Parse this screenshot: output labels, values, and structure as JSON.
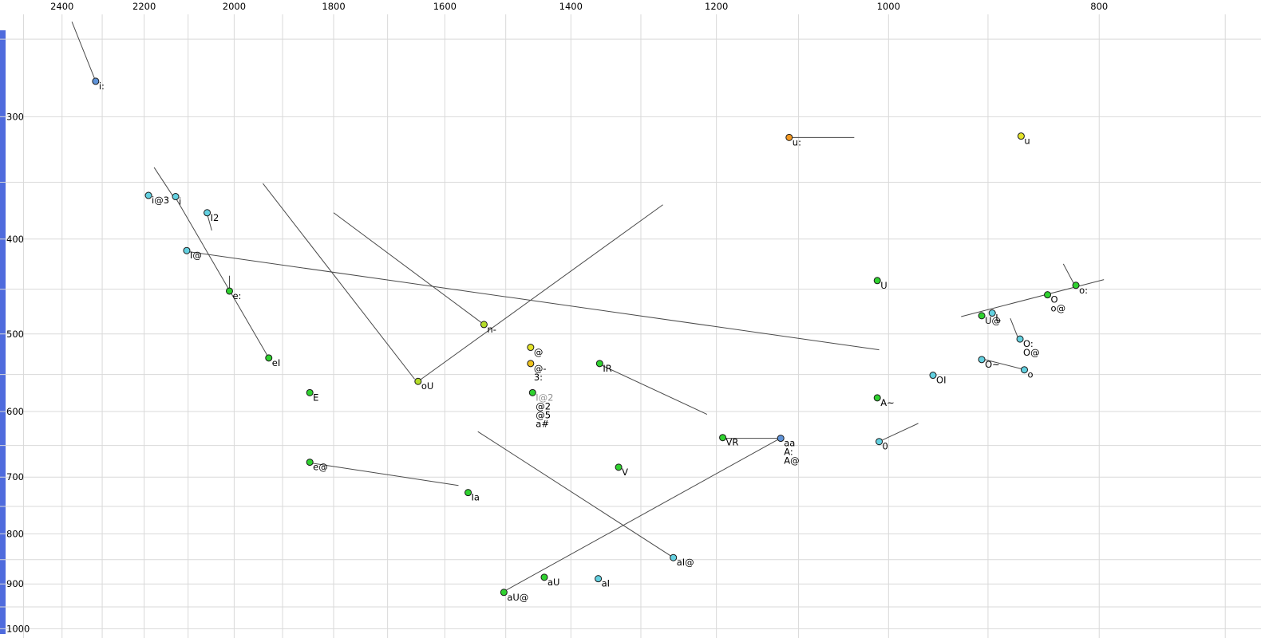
{
  "left_strip": {
    "color": "#4f6bdd"
  },
  "chart_data": {
    "type": "scatter",
    "description": "Vowel formant scatter plot, F2 (Hz, log, reversed) across top vs F1 (Hz, log) down left, with diphthong trajectory lines",
    "grid_color": "#d9d9d9",
    "line_color": "#4a4a4a",
    "label_color": "#000000",
    "muted_label_color": "#909090",
    "x_axis": {
      "ticks": [
        2400,
        2200,
        2000,
        1800,
        1600,
        1400,
        1200,
        1000,
        800
      ],
      "range": [
        2563,
        674
      ],
      "scale": "log",
      "reversed": true,
      "grid": {
        "from": 2500,
        "to": 700,
        "step": 100
      }
    },
    "y_axis": {
      "ticks": [
        300,
        400,
        500,
        600,
        700,
        800,
        900,
        1000
      ],
      "range": [
        228,
        1022
      ],
      "scale": "log",
      "inverted": true,
      "grid": {
        "from": 250,
        "to": 1000,
        "step": 50
      }
    },
    "palette": {
      "green": "#2fd12f",
      "chartreuse": "#b4dc28",
      "cyan": "#63d0e0",
      "yellow": "#e3e32a",
      "gold": "#eec21c",
      "orange": "#f59a23",
      "blue": "#5f93d8"
    },
    "points": [
      {
        "labels": [
          "i:"
        ],
        "f2": 2316,
        "f1": 276,
        "color": "blue"
      },
      {
        "labels": [
          "i@3"
        ],
        "f2": 2190,
        "f1": 361,
        "color": "cyan"
      },
      {
        "labels": [
          "i"
        ],
        "f2": 2128,
        "f1": 362,
        "color": "cyan"
      },
      {
        "labels": [
          "I2"
        ],
        "f2": 2058,
        "f1": 376,
        "color": "cyan"
      },
      {
        "labels": [
          "I@"
        ],
        "f2": 2103,
        "f1": 411,
        "color": "cyan"
      },
      {
        "labels": [
          "e:"
        ],
        "f2": 2010,
        "f1": 452,
        "color": "green"
      },
      {
        "labels": [
          "eI"
        ],
        "f2": 1928,
        "f1": 529,
        "color": "green"
      },
      {
        "labels": [
          "E"
        ],
        "f2": 1846,
        "f1": 574,
        "color": "green"
      },
      {
        "labels": [
          "e@"
        ],
        "f2": 1846,
        "f1": 676,
        "color": "green"
      },
      {
        "labels": [
          "Ia"
        ],
        "f2": 1561,
        "f1": 726,
        "color": "green"
      },
      {
        "labels": [
          "oU"
        ],
        "f2": 1646,
        "f1": 559,
        "color": "chartreuse"
      },
      {
        "labels": [
          "n-"
        ],
        "f2": 1535,
        "f1": 489,
        "color": "chartreuse"
      },
      {
        "labels": [
          "@"
        ],
        "f2": 1461,
        "f1": 516,
        "color": "yellow"
      },
      {
        "labels": [
          "@-",
          "3:"
        ],
        "f2": 1461,
        "f1": 536,
        "color": "gold"
      },
      {
        "labels": [
          {
            "text": "I@2",
            "muted": true
          },
          "@2",
          "@5",
          "a#"
        ],
        "f2": 1458,
        "f1": 574,
        "color": "green"
      },
      {
        "labels": [
          "IR"
        ],
        "f2": 1358,
        "f1": 536,
        "color": "green"
      },
      {
        "labels": [
          "V"
        ],
        "f2": 1331,
        "f1": 684,
        "color": "green"
      },
      {
        "labels": [
          "VR"
        ],
        "f2": 1192,
        "f1": 638,
        "color": "green"
      },
      {
        "labels": [
          "aa",
          "A:",
          "A@"
        ],
        "f2": 1121,
        "f1": 639,
        "color": "blue"
      },
      {
        "labels": [
          "aI@"
        ],
        "f2": 1256,
        "f1": 846,
        "color": "cyan"
      },
      {
        "labels": [
          "aI"
        ],
        "f2": 1360,
        "f1": 889,
        "color": "cyan"
      },
      {
        "labels": [
          "aU"
        ],
        "f2": 1440,
        "f1": 886,
        "color": "green"
      },
      {
        "labels": [
          "aU@"
        ],
        "f2": 1503,
        "f1": 918,
        "color": "green"
      },
      {
        "labels": [
          "u:"
        ],
        "f2": 1111,
        "f1": 315,
        "color": "orange"
      },
      {
        "labels": [
          "u"
        ],
        "f2": 869,
        "f1": 314,
        "color": "yellow"
      },
      {
        "labels": [
          "U"
        ],
        "f2": 1012,
        "f1": 441,
        "color": "green"
      },
      {
        "labels": [
          "A~"
        ],
        "f2": 1012,
        "f1": 581,
        "color": "green"
      },
      {
        "labels": [
          "0"
        ],
        "f2": 1010,
        "f1": 644,
        "color": "cyan"
      },
      {
        "labels": [
          "OI"
        ],
        "f2": 954,
        "f1": 551,
        "color": "cyan"
      },
      {
        "labels": [
          "O~"
        ],
        "f2": 906,
        "f1": 531,
        "color": "cyan"
      },
      {
        "labels": [
          "o"
        ],
        "f2": 866,
        "f1": 544,
        "color": "cyan"
      },
      {
        "labels": [
          "O:",
          "O@"
        ],
        "f2": 870,
        "f1": 506,
        "color": "cyan"
      },
      {
        "labels": [
          "U@"
        ],
        "f2": 906,
        "f1": 479,
        "color": "green"
      },
      {
        "labels": [
          "L"
        ],
        "f2": 896,
        "f1": 476,
        "color": "cyan"
      },
      {
        "labels": [
          "O",
          "o@"
        ],
        "f2": 845,
        "f1": 456,
        "color": "green"
      },
      {
        "labels": [
          "o:"
        ],
        "f2": 820,
        "f1": 446,
        "color": "green"
      }
    ],
    "segments": [
      {
        "f": [
          2375,
          240
        ],
        "t": [
          2316,
          276
        ]
      },
      {
        "f": [
          2177,
          338
        ],
        "t": [
          2135,
          361
        ]
      },
      {
        "f": [
          2128,
          363
        ],
        "t": [
          1928,
          529
        ]
      },
      {
        "f": [
          2058,
          377
        ],
        "t": [
          2048,
          392
        ]
      },
      {
        "f": [
          2010,
          436
        ],
        "t": [
          2010,
          452
        ]
      },
      {
        "f": [
          2100,
          412
        ],
        "t": [
          1010,
          519
        ]
      },
      {
        "f": [
          1940,
          351
        ],
        "t": [
          1652,
          556
        ]
      },
      {
        "f": [
          1800,
          376
        ],
        "t": [
          1537,
          488
        ]
      },
      {
        "f": [
          1646,
          559
        ],
        "t": [
          1270,
          369
        ]
      },
      {
        "f": [
          1846,
          677
        ],
        "t": [
          1577,
          714
        ]
      },
      {
        "f": [
          1545,
          629
        ],
        "t": [
          1258,
          844
        ]
      },
      {
        "f": [
          1503,
          916
        ],
        "t": [
          1123,
          640
        ]
      },
      {
        "f": [
          1358,
          537
        ],
        "t": [
          1212,
          604
        ]
      },
      {
        "f": [
          1190,
          639
        ],
        "t": [
          1125,
          639
        ]
      },
      {
        "f": [
          1110,
          315
        ],
        "t": [
          1037,
          315
        ]
      },
      {
        "f": [
          926,
          480
        ],
        "t": [
          796,
          440
        ]
      },
      {
        "f": [
          903,
          531
        ],
        "t": [
          868,
          543
        ]
      },
      {
        "f": [
          831,
          424
        ],
        "t": [
          821,
          446
        ]
      },
      {
        "f": [
          879,
          482
        ],
        "t": [
          872,
          504
        ]
      },
      {
        "f": [
          1010,
          644
        ],
        "t": [
          969,
          617
        ]
      }
    ]
  }
}
